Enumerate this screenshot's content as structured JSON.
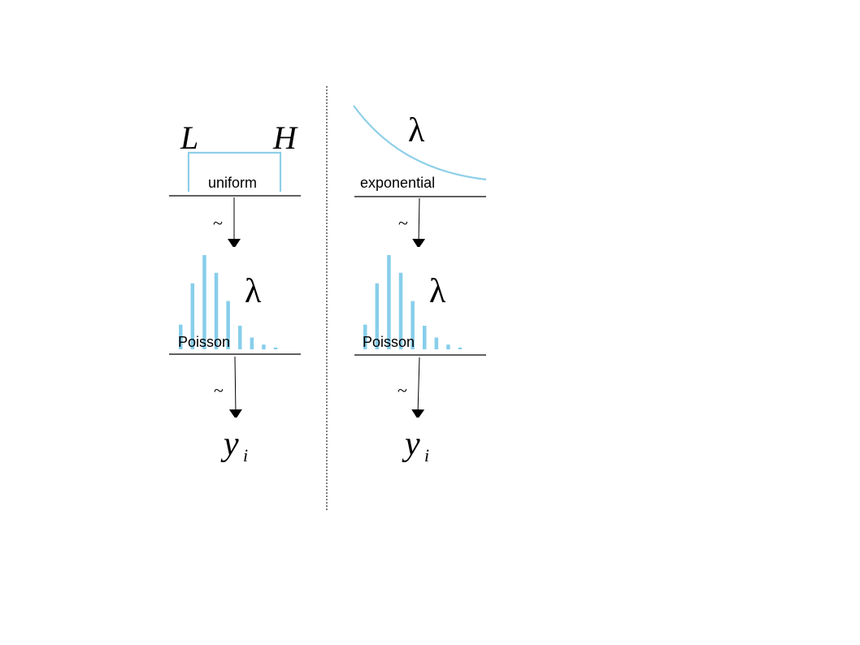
{
  "colors": {
    "distribution": "#8ecfe8",
    "bars": "#87ceeb",
    "ink": "#000000"
  },
  "left": {
    "low_label": "L",
    "high_label": "H",
    "prior_name": "uniform",
    "tilde_1": "~",
    "rate_symbol": "λ",
    "likelihood_name": "Poisson",
    "tilde_2": "~",
    "outcome_base": "y",
    "outcome_subscript": "i"
  },
  "right": {
    "rate_symbol_top": "λ",
    "prior_name": "exponential",
    "tilde_1": "~",
    "rate_symbol": "λ",
    "likelihood_name": "Poisson",
    "tilde_2": "~",
    "outcome_base": "y",
    "outcome_subscript": "i"
  },
  "poisson_bar_heights": [
    0.21,
    0.56,
    0.8,
    0.65,
    0.41,
    0.2,
    0.1,
    0.04,
    0.015
  ]
}
